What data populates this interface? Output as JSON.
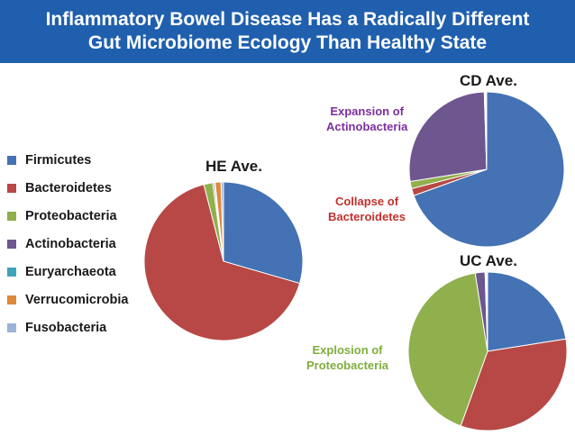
{
  "title": {
    "line1": "Inflammatory Bowel Disease Has a Radically Different",
    "line2": "Gut Microbiome Ecology Than Healthy State"
  },
  "colors": {
    "title_bar": "#1f5fae",
    "Firmicutes": "#4472b4",
    "Bacteroidetes": "#b74845",
    "Proteobacteria": "#8fb04c",
    "Actinobacteria": "#6e568f",
    "Euryarchaeota": "#3fa3bc",
    "Verrucomicrobia": "#e0883a",
    "Fusobacteria": "#9ab4d8"
  },
  "chart_data": [
    {
      "type": "pie",
      "title": "HE Ave.",
      "categories": [
        "Firmicutes",
        "Bacteroidetes",
        "Proteobacteria",
        "Actinobacteria",
        "Euryarchaeota",
        "Verrucomicrobia",
        "Fusobacteria"
      ],
      "values": [
        29.5,
        66.5,
        1.8,
        0.3,
        0.2,
        1.2,
        0.5
      ],
      "legend": "left"
    },
    {
      "type": "pie",
      "title": "CD Ave.",
      "categories": [
        "Firmicutes",
        "Bacteroidetes",
        "Proteobacteria",
        "Actinobacteria",
        "Euryarchaeota",
        "Verrucomicrobia",
        "Fusobacteria"
      ],
      "values": [
        69.5,
        1.5,
        1.5,
        27.0,
        0.1,
        0.2,
        0.2
      ],
      "legend": "left"
    },
    {
      "type": "pie",
      "title": "UC Ave.",
      "categories": [
        "Firmicutes",
        "Bacteroidetes",
        "Proteobacteria",
        "Actinobacteria",
        "Euryarchaeota",
        "Verrucomicrobia",
        "Fusobacteria"
      ],
      "values": [
        22.5,
        33.0,
        42.0,
        2.0,
        0.1,
        0.2,
        0.2
      ],
      "legend": "left"
    }
  ],
  "legend_items": [
    {
      "label": "Firmicutes",
      "color": "#4472b4"
    },
    {
      "label": "Bacteroidetes",
      "color": "#b74845"
    },
    {
      "label": "Proteobacteria",
      "color": "#8fb04c"
    },
    {
      "label": "Actinobacteria",
      "color": "#6e568f"
    },
    {
      "label": "Euryarchaeota",
      "color": "#3fa3bc"
    },
    {
      "label": "Verrucomicrobia",
      "color": "#e0883a"
    },
    {
      "label": "Fusobacteria",
      "color": "#9ab4d8"
    }
  ],
  "annotations": [
    {
      "line1": "Expansion of",
      "line2": "Actinobacteria",
      "color": "#7b2e9e"
    },
    {
      "line1": "Collapse of",
      "line2": "Bacteroidetes",
      "color": "#c0312d"
    },
    {
      "line1": "Explosion of",
      "line2": "Proteobacteria",
      "color": "#7fae3a"
    }
  ]
}
